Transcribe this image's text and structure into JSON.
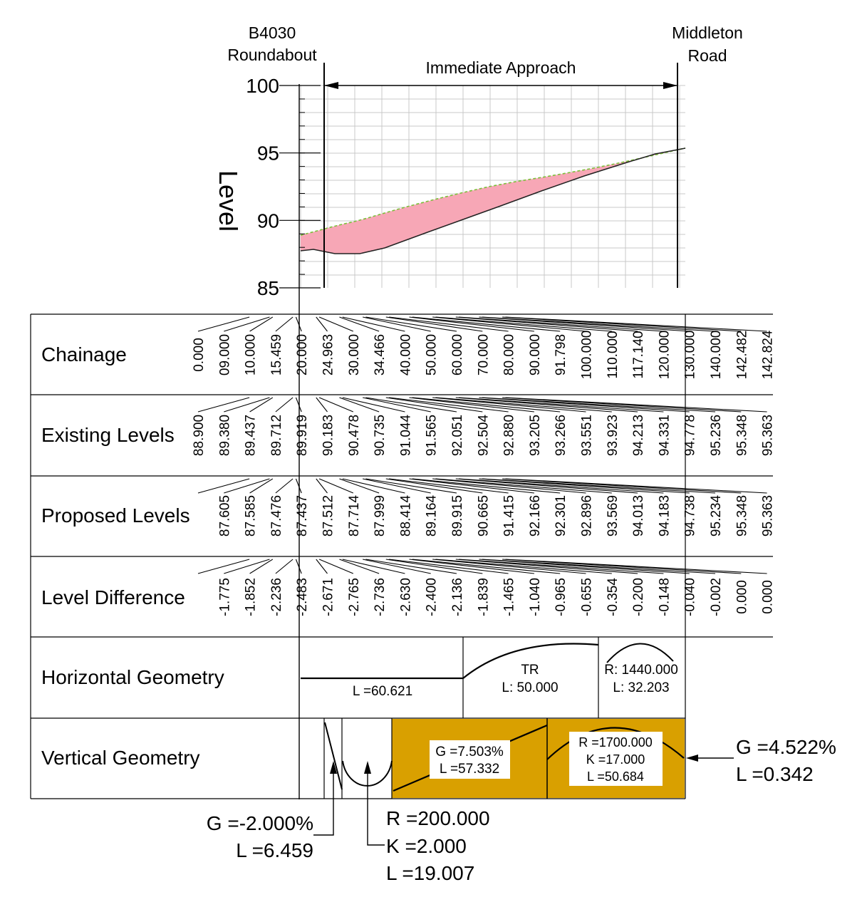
{
  "locations": {
    "left": [
      "B4030",
      "Roundabout"
    ],
    "right": [
      "Middleton",
      "Road"
    ]
  },
  "span_label": "Immediate Approach",
  "y_axis": {
    "title": "Level",
    "ticks": [
      "100",
      "95",
      "90",
      "85"
    ],
    "range": [
      85,
      100
    ]
  },
  "colors": {
    "cut_fill": "#f7a7b6",
    "vertical_geometry_fill": "#d9a000",
    "grid": "#c8c8c8",
    "existing_line": "#7bbf3a"
  },
  "rows": {
    "chainage": {
      "label": "Chainage",
      "values": [
        "0.000",
        "09.000",
        "10.000",
        "15.459",
        "20.000",
        "24.963",
        "30.000",
        "34.466",
        "40.000",
        "50.000",
        "60.000",
        "70.000",
        "80.000",
        "90.000",
        "91.798",
        "100.000",
        "110.000",
        "117.140",
        "120.000",
        "130.000",
        "140.000",
        "142.482",
        "142.824"
      ]
    },
    "existing": {
      "label": "Existing Levels",
      "values": [
        "88.900",
        "89.380",
        "89.437",
        "89.712",
        "89.919",
        "90.183",
        "90.478",
        "90.735",
        "91.044",
        "91.565",
        "92.051",
        "92.504",
        "92.880",
        "93.205",
        "93.266",
        "93.551",
        "93.923",
        "94.213",
        "94.331",
        "94.778",
        "95.236",
        "95.348",
        "95.363"
      ]
    },
    "proposed": {
      "label": "Proposed Levels",
      "values": [
        "87.605",
        "87.585",
        "87.476",
        "87.437",
        "87.512",
        "87.714",
        "87.999",
        "88.414",
        "89.164",
        "89.915",
        "90.665",
        "91.415",
        "92.166",
        "92.301",
        "92.896",
        "93.569",
        "94.013",
        "94.183",
        "94.738",
        "95.234",
        "95.348",
        "95.363"
      ]
    },
    "difference": {
      "label": "Level Difference",
      "values": [
        "-1.775",
        "-1.852",
        "-2.236",
        "-2.483",
        "-2.671",
        "-2.765",
        "-2.736",
        "-2.630",
        "-2.400",
        "-2.136",
        "-1.839",
        "-1.465",
        "-1.040",
        "-0.965",
        "-0.655",
        "-0.354",
        "-0.200",
        "-0.148",
        "-0.040",
        "-0.002",
        "0.000",
        "0.000"
      ]
    },
    "horizontal": {
      "label": "Horizontal Geometry",
      "straight": "L =60.621",
      "transition": [
        "TR",
        "L: 50.000"
      ],
      "curve": [
        "R: 1440.000",
        "L: 32.203"
      ]
    },
    "vertical": {
      "label": "Vertical Geometry",
      "grade_box": [
        "G =7.503%",
        "L =57.332"
      ],
      "curve_box": [
        "R =1700.000",
        "K =17.000",
        "L =50.684"
      ]
    }
  },
  "callouts": {
    "grade_left": [
      "G =-2.000%",
      "L =6.459"
    ],
    "sag_curve": [
      "R =200.000",
      "K =2.000",
      "L =19.007"
    ],
    "grade_right": [
      "G =4.522%",
      "L =0.342"
    ]
  }
}
